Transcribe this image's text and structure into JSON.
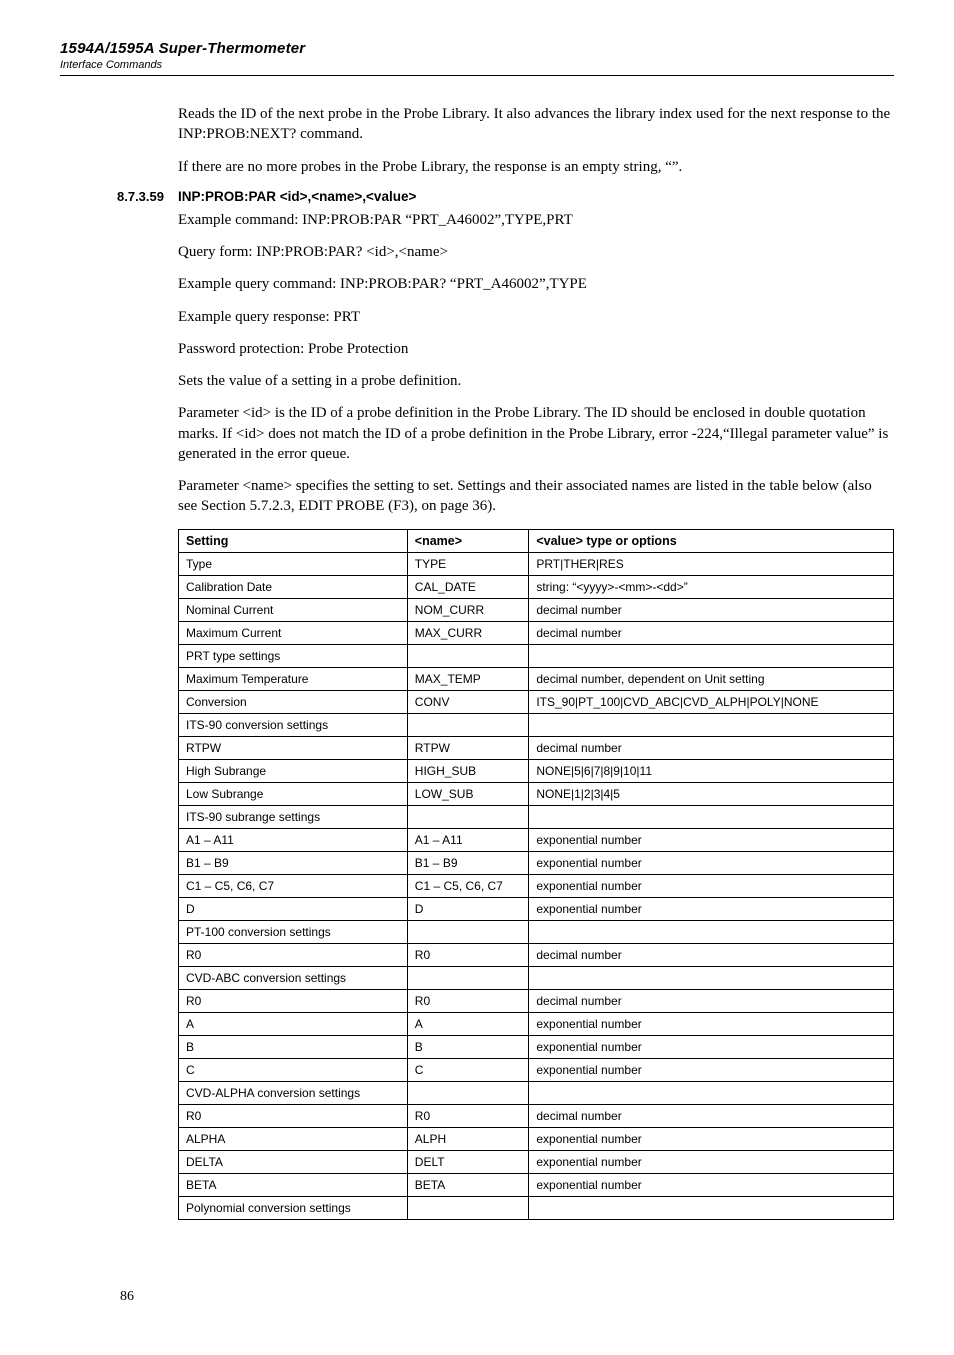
{
  "header": {
    "title": "1594A/1595A Super-Thermometer",
    "subtitle": "Interface Commands"
  },
  "intro": {
    "p1": "Reads the ID of the next probe in the Probe Library. It also advances the library index used for the next response to the INP:PROB:NEXT? command.",
    "p2": "If there are no more probes in the Probe Library, the response is an empty string, “”."
  },
  "section": {
    "number": "8.7.3.59",
    "heading": "INP:PROB:PAR <id>,<name>,<value>",
    "p1": "Example command: INP:PROB:PAR “PRT_A46002”,TYPE,PRT",
    "p2": "Query form: INP:PROB:PAR? <id>,<name>",
    "p3": "Example query command: INP:PROB:PAR? “PRT_A46002”,TYPE",
    "p4": "Example query response: PRT",
    "p5": "Password protection: Probe Protection",
    "p6": "Sets the value of a setting in a probe definition.",
    "p7": "Parameter <id> is the ID of a probe definition in the Probe Library. The ID should be enclosed in double quotation marks. If <id> does not match the ID of a probe definition in the Probe Library, error -224,“Illegal parameter value” is generated in the error queue.",
    "p8": "Parameter <name> specifies the setting to set. Settings and their associated names are listed in the table below (also see Section 5.7.2.3, EDIT PROBE (F3), on page 36)."
  },
  "table": {
    "columns": [
      "Setting",
      "<name>",
      "<value> type or options"
    ],
    "col_widths": [
      "32%",
      "17%",
      "51%"
    ],
    "rows": [
      [
        "Type",
        "TYPE",
        "PRT|THER|RES"
      ],
      [
        "Calibration Date",
        "CAL_DATE",
        "string: “<yyyy>-<mm>-<dd>”"
      ],
      [
        "Nominal Current",
        "NOM_CURR",
        "decimal number"
      ],
      [
        "Maximum Current",
        "MAX_CURR",
        "decimal number"
      ],
      [
        "PRT type settings",
        "",
        ""
      ],
      [
        "Maximum Temperature",
        "MAX_TEMP",
        "decimal number, dependent on Unit setting"
      ],
      [
        "Conversion",
        "CONV",
        "ITS_90|PT_100|CVD_ABC|CVD_ALPH|POLY|NONE"
      ],
      [
        "ITS-90 conversion settings",
        "",
        ""
      ],
      [
        "RTPW",
        "RTPW",
        "decimal number"
      ],
      [
        "High Subrange",
        "HIGH_SUB",
        "NONE|5|6|7|8|9|10|11"
      ],
      [
        "Low Subrange",
        "LOW_SUB",
        "NONE|1|2|3|4|5"
      ],
      [
        "ITS-90 subrange settings",
        "",
        ""
      ],
      [
        "A1 – A11",
        "A1 – A11",
        "exponential number"
      ],
      [
        "B1 – B9",
        "B1 – B9",
        "exponential number"
      ],
      [
        "C1 – C5, C6, C7",
        "C1 – C5, C6, C7",
        "exponential number"
      ],
      [
        "D",
        "D",
        "exponential number"
      ],
      [
        "PT-100 conversion settings",
        "",
        ""
      ],
      [
        "R0",
        "R0",
        "decimal number"
      ],
      [
        "CVD-ABC conversion settings",
        "",
        ""
      ],
      [
        "R0",
        "R0",
        "decimal number"
      ],
      [
        "A",
        "A",
        "exponential number"
      ],
      [
        "B",
        "B",
        "exponential number"
      ],
      [
        "C",
        "C",
        "exponential number"
      ],
      [
        "CVD-ALPHA conversion settings",
        "",
        ""
      ],
      [
        "R0",
        "R0",
        "decimal number"
      ],
      [
        "ALPHA",
        "ALPH",
        "exponential number"
      ],
      [
        "DELTA",
        "DELT",
        "exponential number"
      ],
      [
        "BETA",
        "BETA",
        "exponential number"
      ],
      [
        "Polynomial conversion settings",
        "",
        ""
      ]
    ]
  },
  "page_number": "86",
  "style": {
    "background_color": "#ffffff",
    "text_color": "#000000",
    "border_color": "#000000",
    "body_font": "Times New Roman",
    "heading_font": "Arial",
    "body_fontsize_pt": 11,
    "heading_fontsize_pt": 10,
    "table_fontsize_pt": 9
  }
}
